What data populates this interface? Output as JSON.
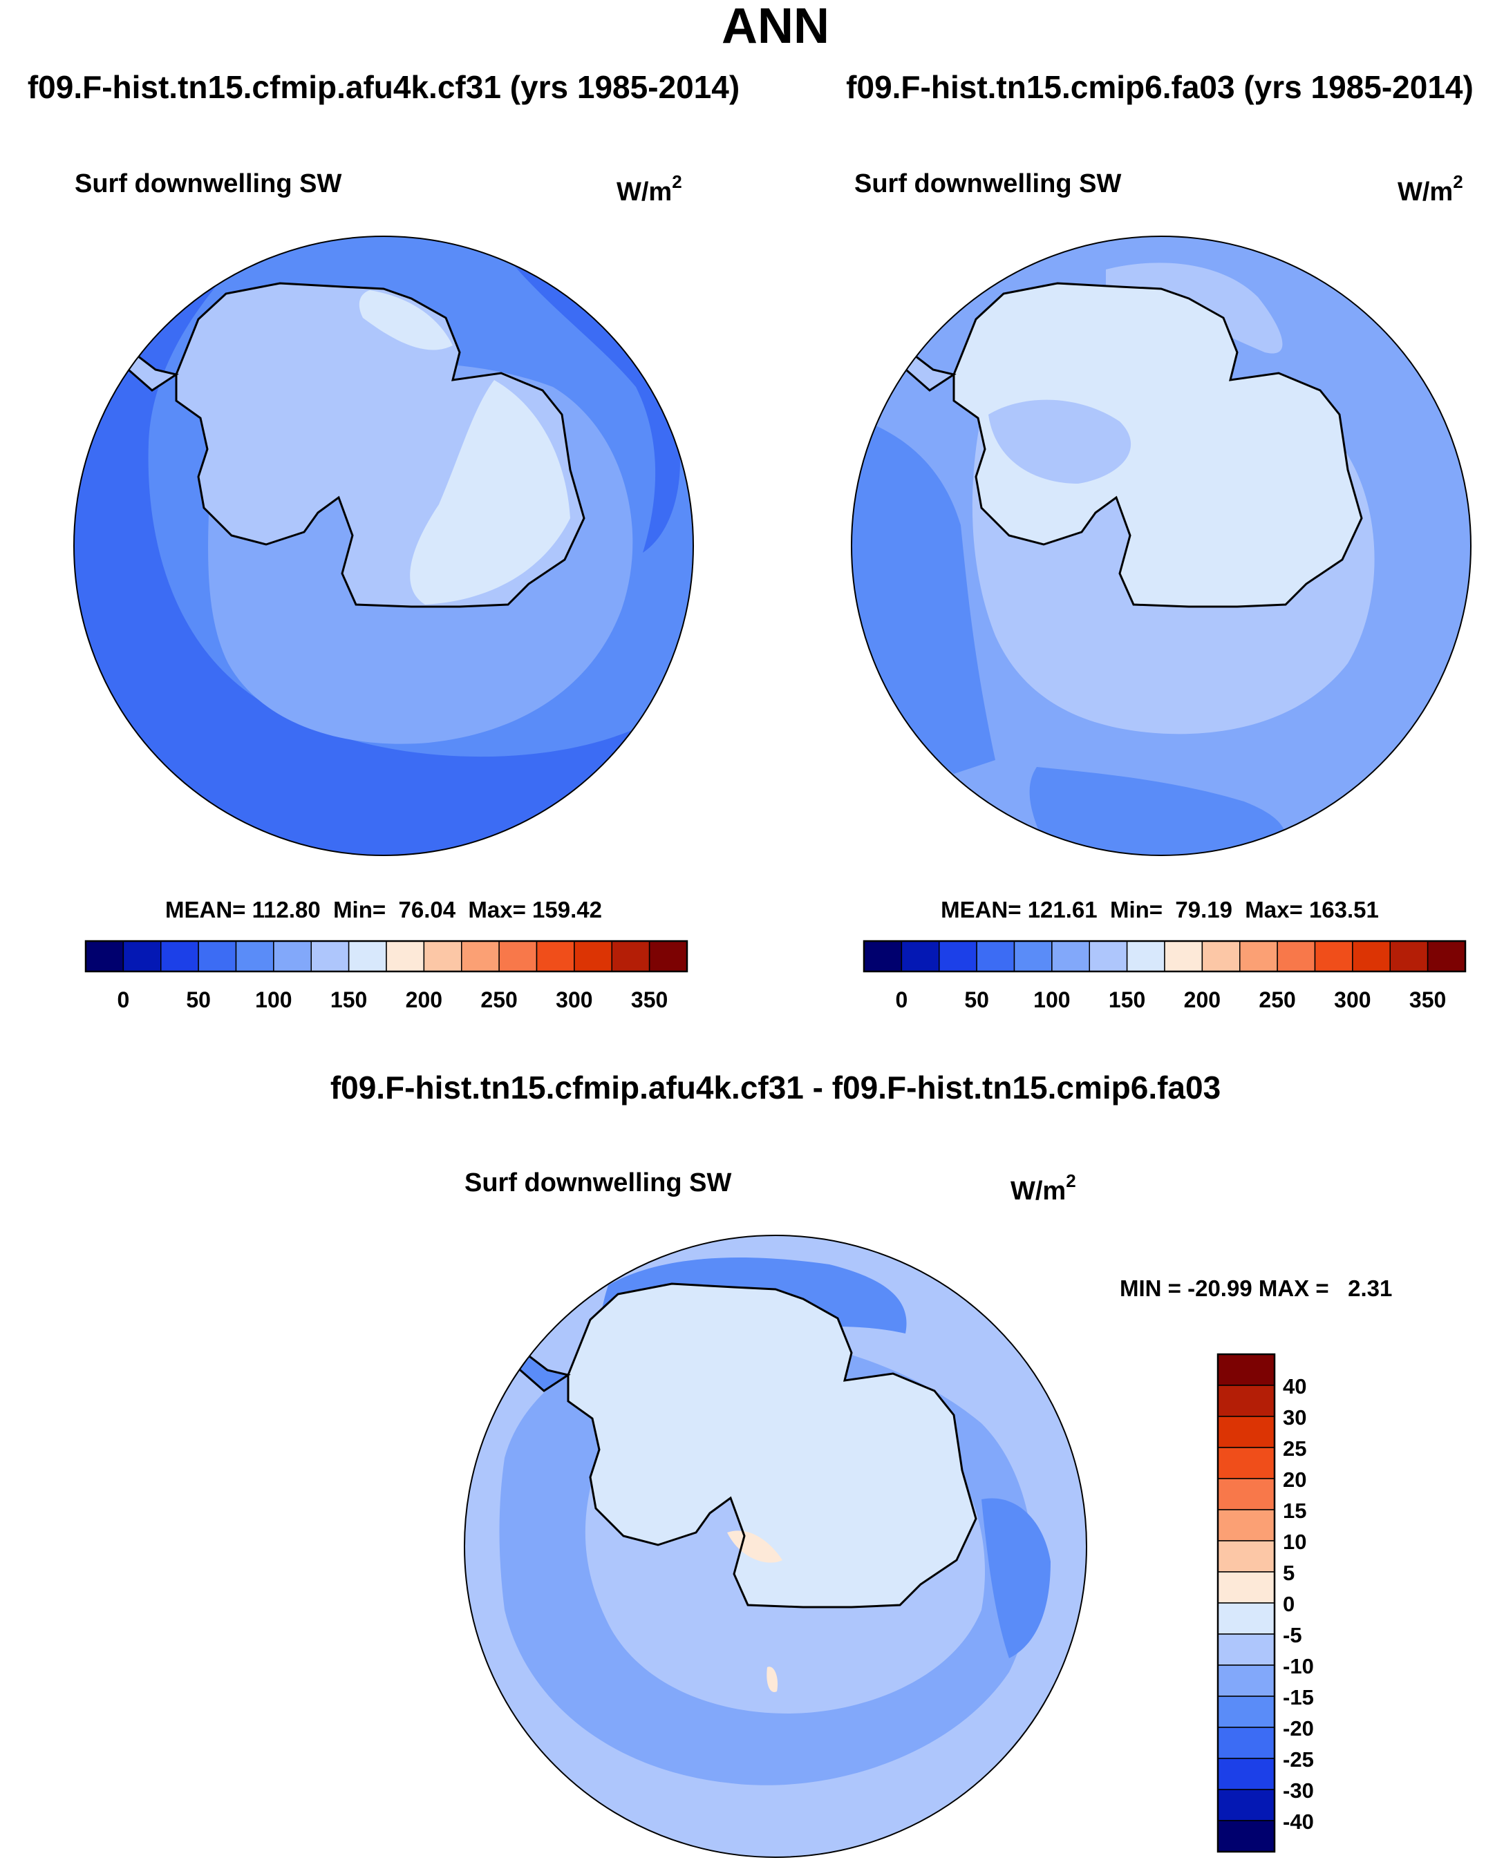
{
  "title": "ANN",
  "panels": [
    {
      "case_title": "f09.F-hist.tn15.cfmip.afu4k.cf31 (yrs 1985-2014)",
      "variable": "Surf downwelling SW",
      "units_base": "W/m",
      "units_exp": "2",
      "stats": "MEAN= 112.80  Min=  76.04  Max= 159.42",
      "mean": 112.8,
      "min": 76.04,
      "max": 159.42,
      "colorbar_labels": [
        "0",
        "50",
        "100",
        "150",
        "200",
        "250",
        "300",
        "350"
      ]
    },
    {
      "case_title": "f09.F-hist.tn15.cmip6.fa03 (yrs 1985-2014)",
      "variable": "Surf downwelling SW",
      "units_base": "W/m",
      "units_exp": "2",
      "stats": "MEAN= 121.61  Min=  79.19  Max= 163.51",
      "mean": 121.61,
      "min": 79.19,
      "max": 163.51,
      "colorbar_labels": [
        "0",
        "50",
        "100",
        "150",
        "200",
        "250",
        "300",
        "350"
      ]
    }
  ],
  "difference": {
    "case_title": "f09.F-hist.tn15.cfmip.afu4k.cf31 - f09.F-hist.tn15.cmip6.fa03",
    "variable": "Surf downwelling SW",
    "units_base": "W/m",
    "units_exp": "2",
    "stats": "MIN = -20.99 MAX =   2.31",
    "min": -20.99,
    "max": 2.31,
    "colorbar_labels": [
      "40",
      "30",
      "25",
      "20",
      "15",
      "10",
      "5",
      "0",
      "-5",
      "-10",
      "-15",
      "-20",
      "-25",
      "-30",
      "-40"
    ]
  },
  "colors": {
    "abs_scale": [
      "#00006e",
      "#0418b4",
      "#1c40e8",
      "#3c6cf4",
      "#5a8cf8",
      "#82a8fa",
      "#aec6fc",
      "#d8e8fc",
      "#fde9d8",
      "#fcc7a6",
      "#fba074",
      "#f8784a",
      "#f04e1a",
      "#dc3404",
      "#b41e06",
      "#7c0202"
    ],
    "diff_scale": [
      "#7c0202",
      "#b41e06",
      "#dc3404",
      "#f04e1a",
      "#f8784a",
      "#fba074",
      "#fcc7a6",
      "#fde9d8",
      "#d8e8fc",
      "#aec6fc",
      "#82a8fa",
      "#5a8cf8",
      "#3c6cf4",
      "#1c40e8",
      "#0418b4",
      "#00006e"
    ]
  }
}
